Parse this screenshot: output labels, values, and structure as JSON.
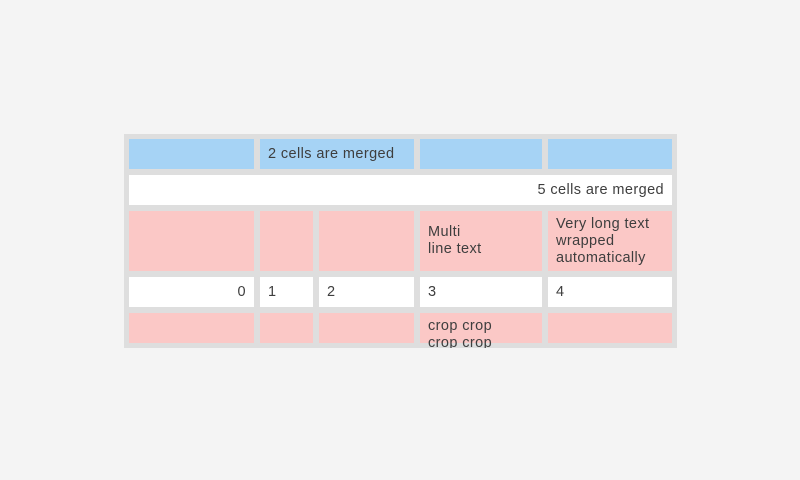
{
  "page": {
    "background_color": "#f4f4f4"
  },
  "colors": {
    "table_frame": "#dedede",
    "cell_blue": "#a6d3f5",
    "cell_white": "#ffffff",
    "cell_pink": "#fbc8c6",
    "text": "#3e3e3e"
  },
  "table": {
    "row1": {
      "merged_label": "2 cells are merged"
    },
    "row2": {
      "merged_label": "5 cells are merged"
    },
    "row3": {
      "multi_line": "Multi\nline text",
      "wrapped": "Very long text wrapped automatically"
    },
    "row4": {
      "values": [
        "0",
        "1",
        "2",
        "3",
        "4"
      ]
    },
    "row5": {
      "crop": "crop crop crop crop"
    }
  }
}
